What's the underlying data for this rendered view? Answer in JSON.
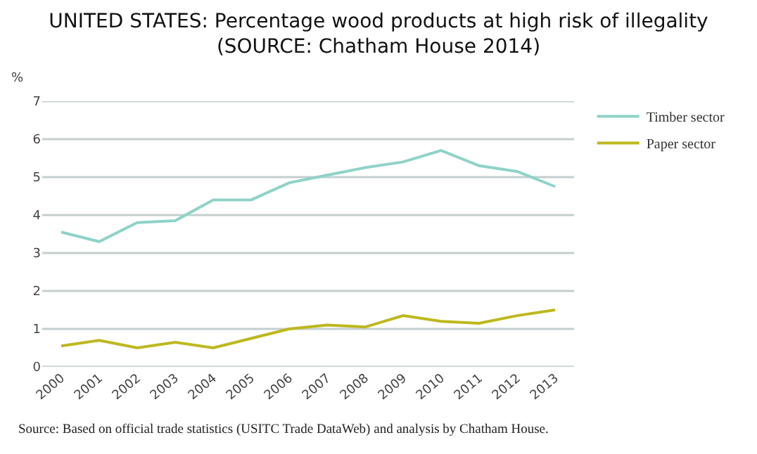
{
  "chart_data": {
    "type": "line",
    "title": "UNITED STATES: Percentage wood products at high risk of illegality",
    "subtitle": "(SOURCE: Chatham House 2014)",
    "ylabel": "%",
    "categories": [
      "2000",
      "2001",
      "2002",
      "2003",
      "2004",
      "2005",
      "2006",
      "2007",
      "2008",
      "2009",
      "2010",
      "2011",
      "2012",
      "2013"
    ],
    "series": [
      {
        "name": "Timber sector",
        "color": "#8fd3c8",
        "values": [
          3.55,
          3.3,
          3.8,
          3.85,
          4.4,
          4.4,
          4.85,
          5.05,
          5.25,
          5.4,
          5.7,
          5.3,
          5.15,
          4.75
        ]
      },
      {
        "name": "Paper sector",
        "color": "#bdb81e",
        "values": [
          0.55,
          0.7,
          0.5,
          0.65,
          0.5,
          0.75,
          1.0,
          1.1,
          1.05,
          1.35,
          1.2,
          1.15,
          1.35,
          1.5
        ]
      }
    ],
    "ylim": [
      0,
      7
    ],
    "yticks": [
      0,
      1,
      2,
      3,
      4,
      5,
      6,
      7
    ],
    "grid": "y",
    "legend": "top right",
    "marker": "none",
    "line_style": "solid",
    "annotations": [
      "Source: Based on official trade statistics (USITC Trade DataWeb) and analysis by Chatham House."
    ]
  }
}
